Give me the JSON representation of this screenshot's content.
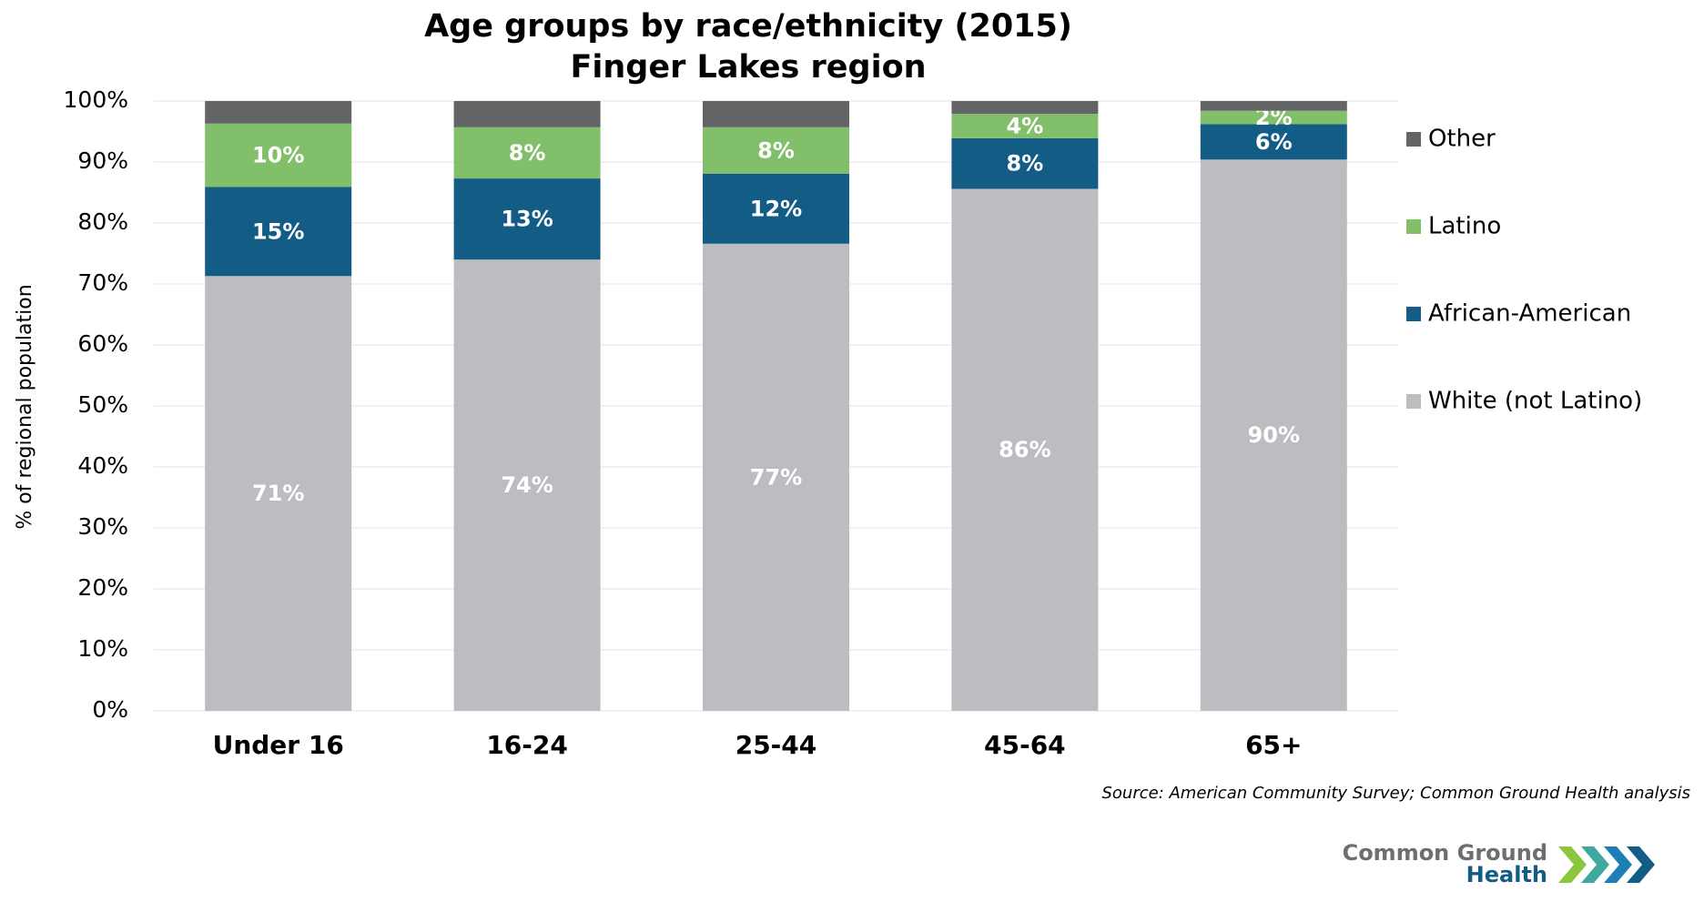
{
  "chart_data": {
    "type": "stacked-bar",
    "title": [
      "Age groups by race/ethnicity (2015)",
      "Finger Lakes region"
    ],
    "y_axis_label": "% of regional population",
    "categories": [
      "Under 16",
      "16-24",
      "25-44",
      "45-64",
      "65+"
    ],
    "series": [
      {
        "name": "White (not Latino)",
        "color": "#bcbdc0",
        "values": [
          71.3,
          74.0,
          76.6,
          85.6,
          90.4
        ],
        "value_labels": [
          "71%",
          "74%",
          "77%",
          "86%",
          "90%"
        ]
      },
      {
        "name": "African-American",
        "color": "#135c85",
        "values": [
          14.6,
          13.3,
          11.5,
          8.3,
          5.8
        ],
        "value_labels": [
          "15%",
          "13%",
          "12%",
          "8%",
          "6%"
        ]
      },
      {
        "name": "Latino",
        "color": "#82bf6b",
        "values": [
          10.4,
          8.4,
          7.6,
          4.0,
          2.2
        ],
        "value_labels": [
          "10%",
          "8%",
          "8%",
          "4%",
          "2%"
        ]
      },
      {
        "name": "Other",
        "color": "#636466",
        "values": [
          3.7,
          4.3,
          4.3,
          2.1,
          1.6
        ]
      }
    ],
    "ylim": [
      0,
      100
    ],
    "yticks": [
      {
        "value": 0,
        "label": "0%"
      },
      {
        "value": 10,
        "label": "10%"
      },
      {
        "value": 20,
        "label": "20%"
      },
      {
        "value": 30,
        "label": "30%"
      },
      {
        "value": 40,
        "label": "40%"
      },
      {
        "value": 50,
        "label": "50%"
      },
      {
        "value": 60,
        "label": "60%"
      },
      {
        "value": 70,
        "label": "70%"
      },
      {
        "value": 80,
        "label": "80%"
      },
      {
        "value": 90,
        "label": "90%"
      },
      {
        "value": 100,
        "label": "100%"
      }
    ],
    "grid": true,
    "legend_position": "right",
    "source": "Source: American Community Survey; Common Ground Health analysis"
  },
  "logo": {
    "line1": "Common Ground",
    "line2": "Health"
  }
}
